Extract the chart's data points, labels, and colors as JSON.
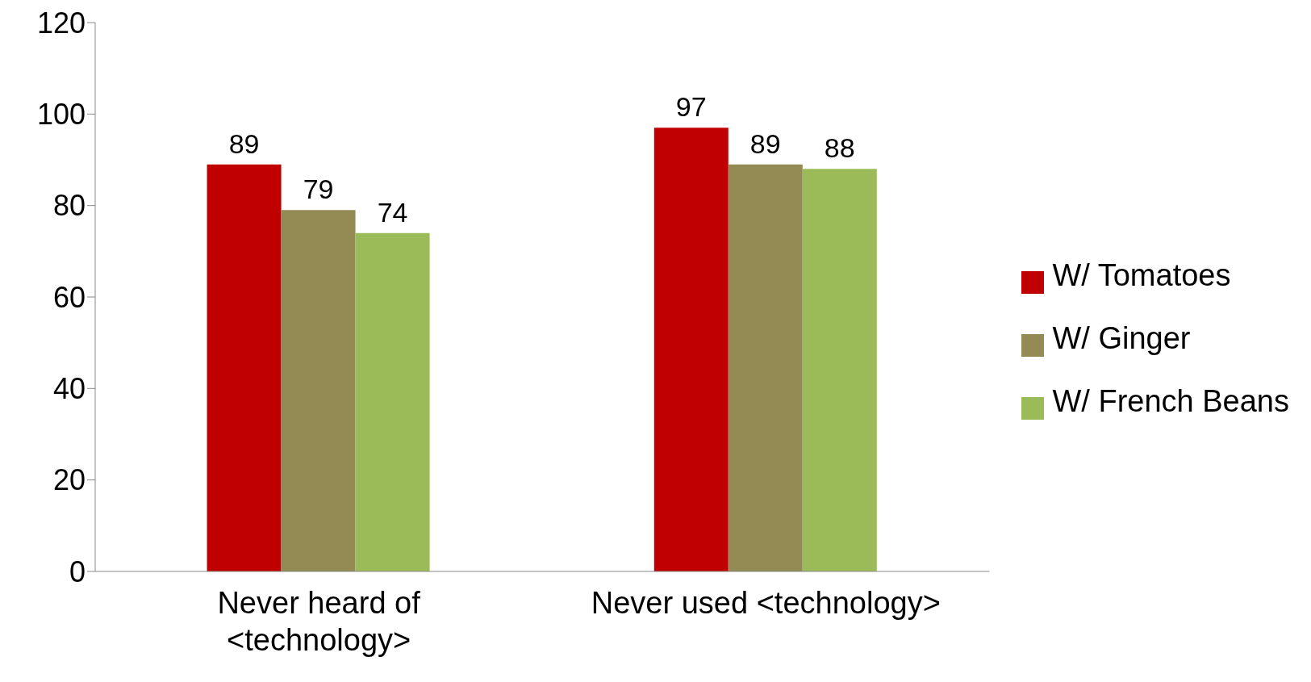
{
  "chart_data": {
    "type": "bar",
    "categories": [
      "Never heard of <technology>",
      "Never used <technology>"
    ],
    "series": [
      {
        "name": "W/ Tomatoes",
        "color": "#c00000",
        "values": [
          89,
          97
        ]
      },
      {
        "name": "W/ Ginger",
        "color": "#948a54",
        "values": [
          79,
          89
        ]
      },
      {
        "name": "W/ French Beans",
        "color": "#9bbb59",
        "values": [
          74,
          88
        ]
      }
    ],
    "ylim": [
      0,
      120
    ],
    "yticks": [
      0,
      20,
      40,
      60,
      80,
      100,
      120
    ],
    "grid": false,
    "legend": "right",
    "data_labels": true
  }
}
